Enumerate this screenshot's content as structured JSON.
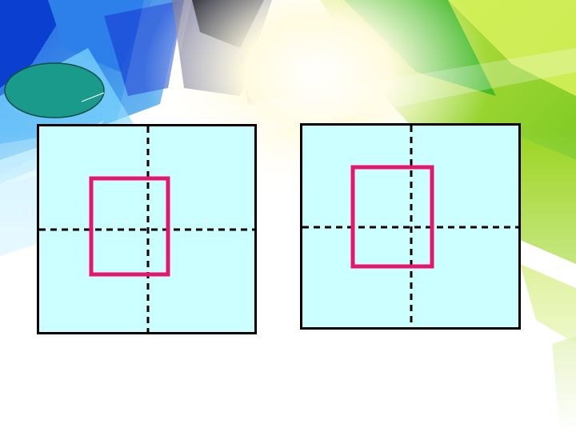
{
  "callout": {
    "text": "",
    "fill_color": "#1a9a8a"
  },
  "panels": {
    "left": {
      "background": "#ccffff"
    },
    "right": {
      "background": "#ccffff"
    }
  },
  "colors": {
    "rectangle_outline": "#e8146e",
    "guide_lines": "#000000",
    "panel_border": "#000000"
  }
}
